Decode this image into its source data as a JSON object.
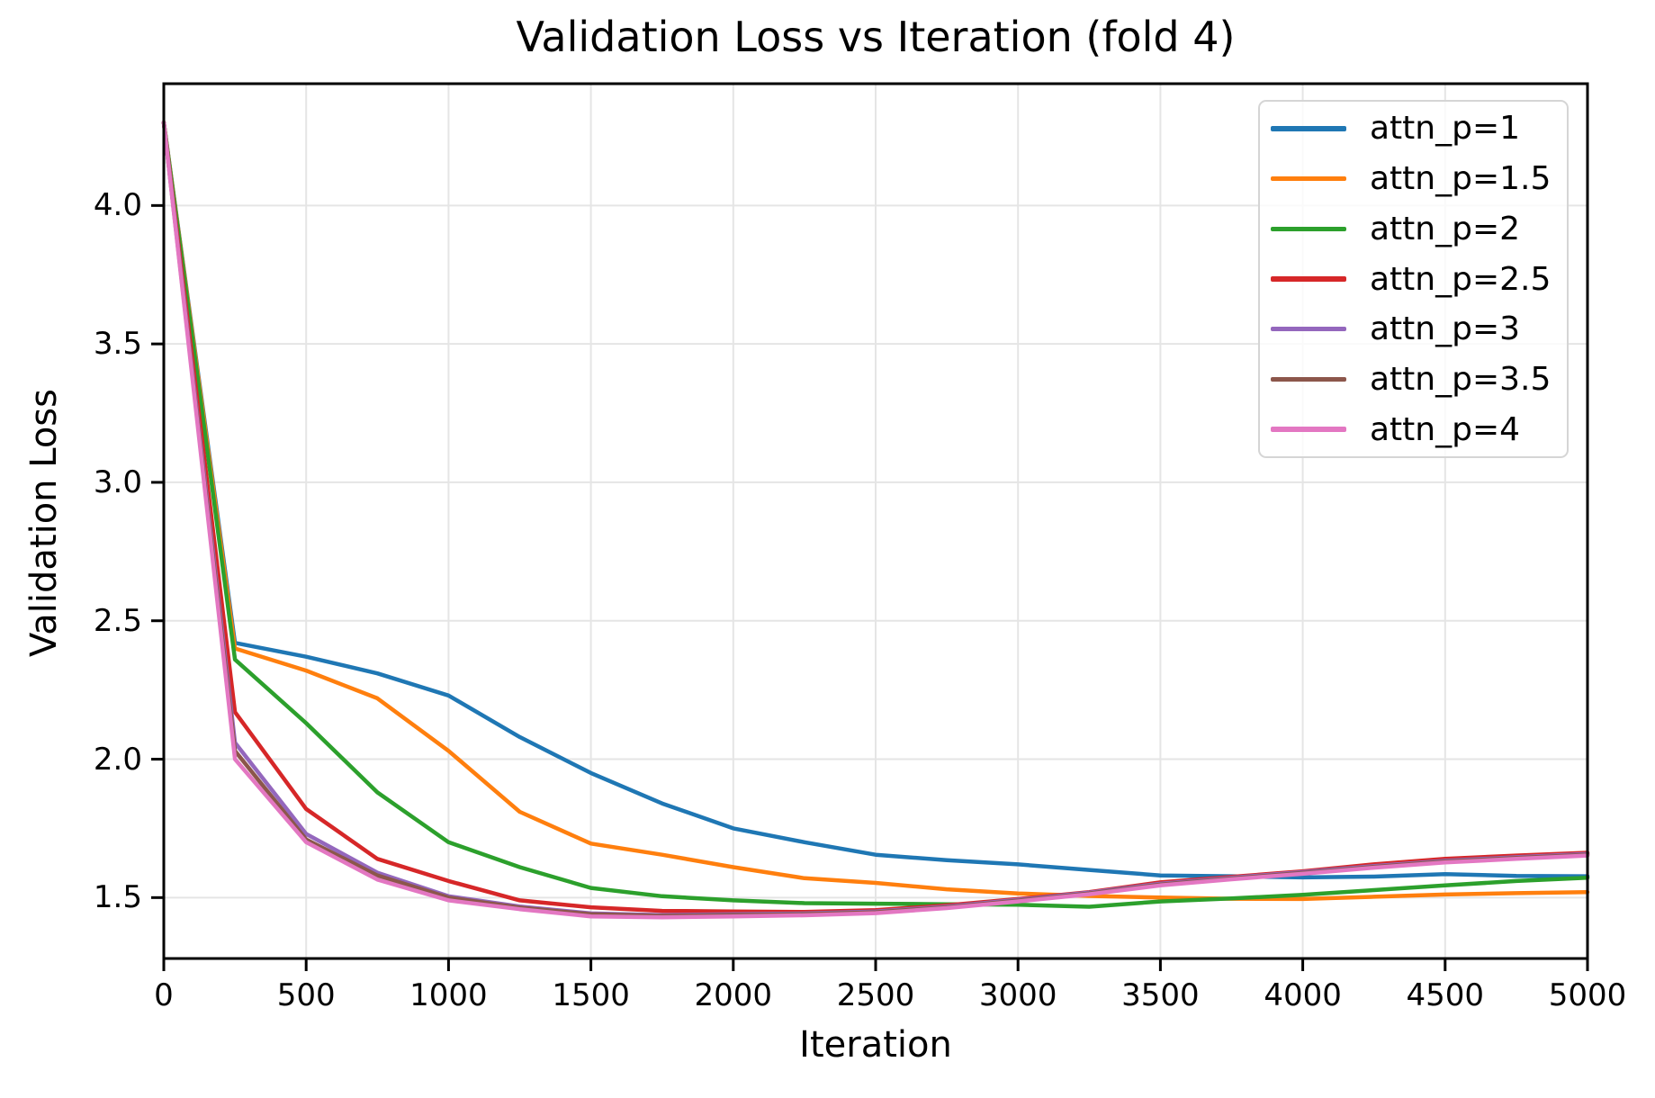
{
  "chart_data": {
    "type": "line",
    "title": "Validation Loss vs Iteration (fold 4)",
    "xlabel": "Iteration",
    "ylabel": "Validation Loss",
    "xlim": [
      0,
      5000
    ],
    "ylim": [
      1.28,
      4.44
    ],
    "x_ticks": [
      "0",
      "500",
      "1000",
      "1500",
      "2000",
      "2500",
      "3000",
      "3500",
      "4000",
      "4500",
      "5000"
    ],
    "x_tick_values": [
      0,
      500,
      1000,
      1500,
      2000,
      2500,
      3000,
      3500,
      4000,
      4500,
      5000
    ],
    "y_ticks": [
      "1.5",
      "2.0",
      "2.5",
      "3.0",
      "3.5",
      "4.0"
    ],
    "y_tick_values": [
      1.5,
      2.0,
      2.5,
      3.0,
      3.5,
      4.0
    ],
    "grid": true,
    "grid_color": "#e5e5e5",
    "spine_color": "#000000",
    "legend_position": "upper right",
    "x": [
      0,
      250,
      500,
      750,
      1000,
      1250,
      1500,
      1750,
      2000,
      2250,
      2500,
      2750,
      3000,
      3250,
      3500,
      3750,
      4000,
      4250,
      4500,
      4750,
      5000
    ],
    "series": [
      {
        "name": "attn_p=1",
        "color": "#1f77b4",
        "values": [
          4.3,
          2.42,
          2.37,
          2.31,
          2.23,
          2.08,
          1.95,
          1.84,
          1.75,
          1.7,
          1.655,
          1.635,
          1.62,
          1.6,
          1.58,
          1.577,
          1.573,
          1.576,
          1.585,
          1.578,
          1.577
        ]
      },
      {
        "name": "attn_p=1.5",
        "color": "#ff7f0e",
        "values": [
          4.3,
          2.4,
          2.32,
          2.22,
          2.03,
          1.81,
          1.695,
          1.655,
          1.61,
          1.57,
          1.553,
          1.53,
          1.515,
          1.506,
          1.5,
          1.496,
          1.495,
          1.503,
          1.511,
          1.516,
          1.52
        ]
      },
      {
        "name": "attn_p=2",
        "color": "#2ca02c",
        "values": [
          4.3,
          2.36,
          2.13,
          1.88,
          1.7,
          1.61,
          1.535,
          1.505,
          1.49,
          1.48,
          1.478,
          1.476,
          1.474,
          1.467,
          1.486,
          1.497,
          1.51,
          1.527,
          1.544,
          1.56,
          1.572
        ]
      },
      {
        "name": "attn_p=2.5",
        "color": "#d62728",
        "values": [
          4.3,
          2.17,
          1.82,
          1.64,
          1.56,
          1.49,
          1.465,
          1.452,
          1.45,
          1.448,
          1.455,
          1.472,
          1.495,
          1.52,
          1.555,
          1.575,
          1.595,
          1.62,
          1.64,
          1.652,
          1.662
        ]
      },
      {
        "name": "attn_p=3",
        "color": "#9467bd",
        "values": [
          4.3,
          2.06,
          1.73,
          1.59,
          1.505,
          1.468,
          1.443,
          1.437,
          1.44,
          1.443,
          1.45,
          1.468,
          1.492,
          1.518,
          1.55,
          1.572,
          1.592,
          1.614,
          1.633,
          1.646,
          1.658
        ]
      },
      {
        "name": "attn_p=3.5",
        "color": "#8c564b",
        "values": [
          4.3,
          2.03,
          1.71,
          1.58,
          1.5,
          1.464,
          1.44,
          1.434,
          1.437,
          1.44,
          1.447,
          1.465,
          1.489,
          1.515,
          1.547,
          1.569,
          1.589,
          1.611,
          1.63,
          1.643,
          1.655
        ]
      },
      {
        "name": "attn_p=4",
        "color": "#e377c2",
        "values": [
          4.3,
          2.0,
          1.7,
          1.565,
          1.49,
          1.458,
          1.432,
          1.429,
          1.432,
          1.436,
          1.444,
          1.462,
          1.486,
          1.512,
          1.544,
          1.566,
          1.586,
          1.608,
          1.627,
          1.64,
          1.652
        ]
      }
    ]
  }
}
